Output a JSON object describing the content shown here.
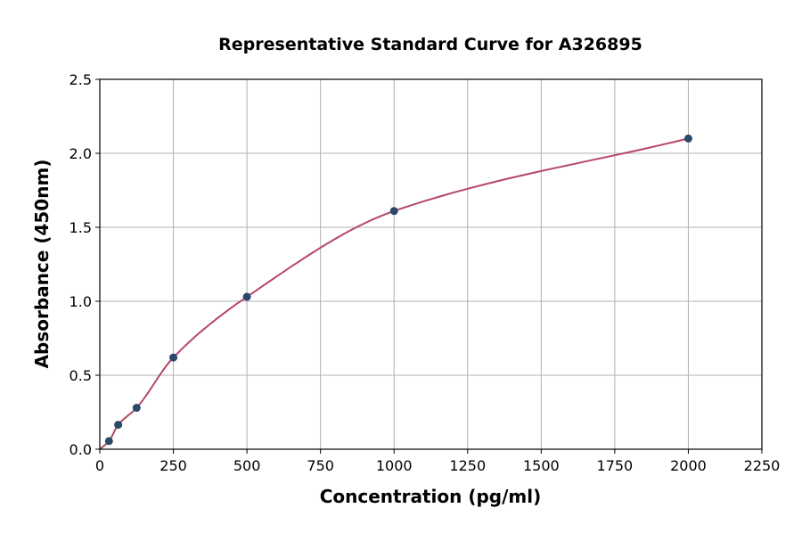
{
  "chart_data": {
    "type": "scatter",
    "title": "Representative Standard Curve for A326895",
    "xlabel": "Concentration (pg/ml)",
    "ylabel": "Absorbance (450nm)",
    "xlim": [
      0,
      2250
    ],
    "ylim": [
      0,
      2.5
    ],
    "xticks": [
      0,
      250,
      500,
      750,
      1000,
      1250,
      1500,
      1750,
      2000,
      2250
    ],
    "yticks": [
      "0.0",
      "0.5",
      "1.0",
      "1.5",
      "2.0",
      "2.5"
    ],
    "grid": true,
    "points": [
      {
        "x": 31.25,
        "y": 0.055
      },
      {
        "x": 62.5,
        "y": 0.165
      },
      {
        "x": 125,
        "y": 0.28
      },
      {
        "x": 250,
        "y": 0.62
      },
      {
        "x": 500,
        "y": 1.03
      },
      {
        "x": 1000,
        "y": 1.61
      },
      {
        "x": 2000,
        "y": 2.1
      }
    ],
    "fit_curve": true,
    "colors": {
      "points": "#2b4a6b",
      "curve": "#b5476b",
      "grid": "#b0b0b0"
    }
  }
}
